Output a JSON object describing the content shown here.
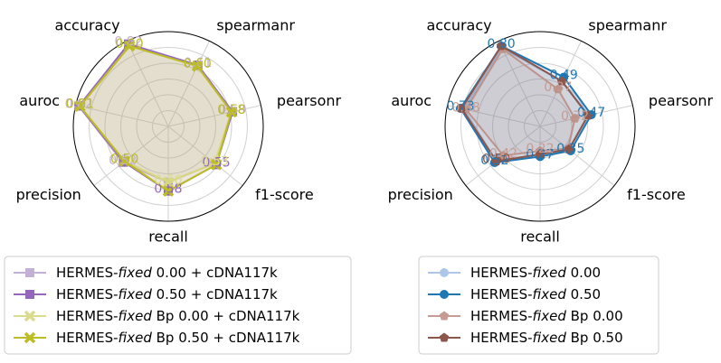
{
  "chart_data": [
    {
      "type": "radar",
      "categories": [
        "spearmanr",
        "pearsonr",
        "f1-score",
        "recall",
        "precision",
        "auroc",
        "accuracy"
      ],
      "rlim": [
        0,
        0.85
      ],
      "series": [
        {
          "name": "HERMES-fixed 0.00 + cDNA117k",
          "color": "#c5b0d5",
          "marker": "square",
          "values": [
            0.61,
            0.59,
            0.53,
            0.5,
            0.52,
            0.82,
            0.82
          ],
          "value_labels": [
            "0.61",
            "0.59",
            null,
            null,
            "0.52",
            "0.82",
            "0.82"
          ]
        },
        {
          "name": "HERMES-fixed 0.50 + cDNA117k",
          "color": "#9467bd",
          "marker": "square",
          "values": [
            0.61,
            0.59,
            0.55,
            0.58,
            0.51,
            0.82,
            0.82
          ],
          "value_labels": [
            null,
            null,
            "0.55",
            "0.58",
            null,
            null,
            null
          ]
        },
        {
          "name": "HERMES-fixed Bp 0.00 + cDNA117k",
          "color": "#dbdb8d",
          "marker": "x",
          "values": [
            0.6,
            0.58,
            0.53,
            0.5,
            0.5,
            0.81,
            0.8
          ],
          "value_labels": [
            null,
            null,
            "0.53",
            "0.50",
            null,
            null,
            null
          ]
        },
        {
          "name": "HERMES-fixed Bp 0.50 + cDNA117k",
          "color": "#bcbd22",
          "marker": "x",
          "values": [
            0.6,
            0.58,
            0.55,
            0.58,
            0.5,
            0.81,
            0.8
          ],
          "value_labels": [
            "0.60",
            "0.58",
            null,
            null,
            "0.50",
            "0.81",
            "0.80"
          ]
        }
      ]
    },
    {
      "type": "radar",
      "categories": [
        "spearmanr",
        "pearsonr",
        "f1-score",
        "recall",
        "precision",
        "auroc",
        "accuracy"
      ],
      "rlim": [
        0,
        0.85
      ],
      "series": [
        {
          "name": "HERMES-fixed 0.00",
          "color": "#aec7e8",
          "marker": "circle",
          "values": [
            0.45,
            0.45,
            0.33,
            0.25,
            0.5,
            0.7,
            0.78
          ],
          "value_labels": [
            null,
            null,
            null,
            null,
            null,
            null,
            null
          ]
        },
        {
          "name": "HERMES-fixed 0.50",
          "color": "#1f77b4",
          "marker": "circle",
          "values": [
            0.49,
            0.47,
            0.35,
            0.27,
            0.52,
            0.73,
            0.8
          ],
          "value_labels": [
            "0.49",
            "0.47",
            "0.35",
            "0.27",
            "0.52",
            "0.73",
            "0.80"
          ]
        },
        {
          "name": "HERMES-fixed Bp 0.00",
          "color": "#c49c94",
          "marker": "pentagon",
          "values": [
            0.37,
            0.32,
            0.32,
            0.22,
            0.42,
            0.68,
            0.77
          ],
          "value_labels": [
            "0.37",
            "0.32",
            null,
            "0.22",
            "0.42",
            "0.68",
            null
          ]
        },
        {
          "name": "HERMES-fixed Bp 0.50",
          "color": "#8c564b",
          "marker": "pentagon",
          "values": [
            0.45,
            0.44,
            0.33,
            0.25,
            0.5,
            0.72,
            0.8
          ],
          "value_labels": [
            null,
            null,
            null,
            null,
            "0.50",
            null,
            null
          ]
        }
      ]
    }
  ]
}
